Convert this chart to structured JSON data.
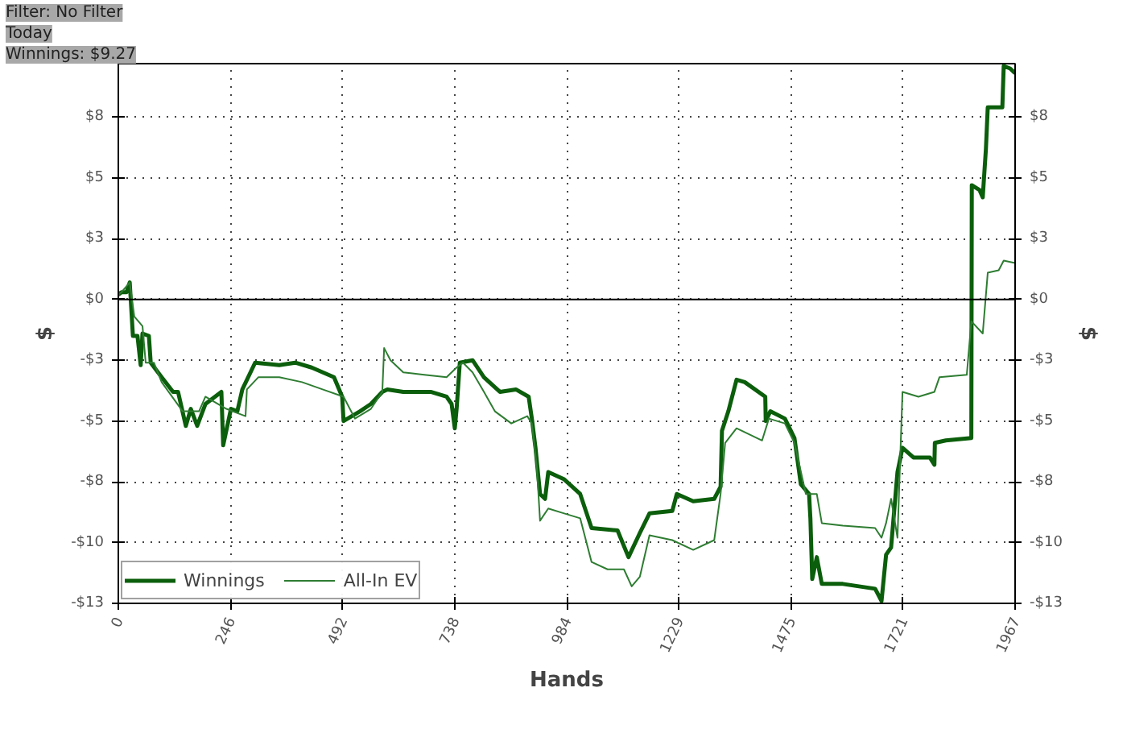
{
  "chart_data": {
    "type": "line",
    "xlabel": "Hands",
    "ylabel": "$",
    "y2label": "$",
    "annotations": [
      "Filter: No Filter",
      "Today",
      "Winnings: $9.27"
    ],
    "xlim": [
      0,
      1967
    ],
    "xticks": [
      0,
      {
        "value": 245.875,
        "label": "246"
      },
      {
        "value": 491.75,
        "label": "492"
      },
      {
        "value": 737.625,
        "label": "738"
      },
      {
        "value": 983.5,
        "label": "984"
      },
      {
        "value": 1229.375,
        "label": "1229"
      },
      {
        "value": 1475.25,
        "label": "1475"
      },
      {
        "value": 1721.125,
        "label": "1721"
      },
      1967
    ],
    "ylim": [
      -12.5,
      9.7
    ],
    "yticks": [
      {
        "value": -12.5,
        "label": "-$13"
      },
      {
        "value": -10,
        "label": "-$10"
      },
      {
        "value": -7.5,
        "label": "-$8"
      },
      {
        "value": -5,
        "label": "-$5"
      },
      {
        "value": -2.5,
        "label": "-$3"
      },
      {
        "value": 0,
        "label": "$0"
      },
      {
        "value": 2.5,
        "label": "$3"
      },
      {
        "value": 5,
        "label": "$5"
      },
      {
        "value": 7.5,
        "label": "$8"
      }
    ],
    "y2lim": [
      -12.5,
      9.7
    ],
    "y2ticks": [
      {
        "value": -12.5,
        "label": "-$13"
      },
      {
        "value": -10,
        "label": "-$10"
      },
      {
        "value": -7.5,
        "label": "-$8"
      },
      {
        "value": -5,
        "label": "-$5"
      },
      {
        "value": -2.5,
        "label": "-$3"
      },
      {
        "value": 0,
        "label": "$0"
      },
      {
        "value": 2.5,
        "label": "$3"
      },
      {
        "value": 5,
        "label": "$5"
      },
      {
        "value": 7.5,
        "label": "$8"
      }
    ],
    "ref_lines": [
      {
        "axis": "y",
        "value": 0,
        "color": "#000000"
      }
    ],
    "grid": true,
    "legend": "bottom left",
    "marker": "none",
    "line_style": "solid",
    "series": [
      {
        "name": "Winnings",
        "color": "#0b5e0b",
        "x": [
          0,
          7,
          18,
          25,
          32,
          42,
          49,
          53,
          67,
          71,
          95,
          120,
          131,
          148,
          159,
          173,
          191,
          226,
          230,
          247,
          261,
          272,
          300,
          353,
          388,
          424,
          473,
          491,
          494,
          530,
          554,
          579,
          590,
          625,
          685,
          720,
          731,
          738,
          742,
          749,
          777,
          802,
          837,
          872,
          900,
          907,
          915,
          925,
          936,
          943,
          978,
          1013,
          1038,
          1095,
          1119,
          1144,
          1165,
          1215,
          1225,
          1261,
          1307,
          1321,
          1324,
          1338,
          1356,
          1374,
          1419,
          1420,
          1430,
          1462,
          1483,
          1497,
          1515,
          1518,
          1522,
          1532,
          1543,
          1589,
          1660,
          1674,
          1684,
          1695,
          1709,
          1720,
          1744,
          1780,
          1790,
          1791,
          1815,
          1871,
          1872,
          1889,
          1896,
          1903,
          1907,
          1939,
          1942,
          1956,
          1967
        ],
        "values": [
          0.2,
          0.3,
          0.3,
          0.7,
          -1.5,
          -1.5,
          -2.7,
          -1.4,
          -1.5,
          -2.6,
          -3.2,
          -3.8,
          -3.8,
          -5.2,
          -4.5,
          -5.2,
          -4.3,
          -3.8,
          -6.0,
          -4.5,
          -4.6,
          -3.7,
          -2.6,
          -2.7,
          -2.6,
          -2.8,
          -3.2,
          -4.0,
          -5.0,
          -4.6,
          -4.3,
          -3.8,
          -3.7,
          -3.8,
          -3.8,
          -4.0,
          -4.3,
          -5.3,
          -4.5,
          -2.6,
          -2.5,
          -3.2,
          -3.8,
          -3.7,
          -4.0,
          -4.9,
          -6.1,
          -8.0,
          -8.2,
          -7.1,
          -7.4,
          -8.0,
          -9.4,
          -9.5,
          -10.6,
          -9.6,
          -8.8,
          -8.7,
          -8.0,
          -8.3,
          -8.2,
          -7.7,
          -5.4,
          -4.6,
          -3.3,
          -3.4,
          -4.0,
          -5.0,
          -4.6,
          -4.9,
          -5.7,
          -7.6,
          -8.0,
          -9.0,
          -11.5,
          -10.6,
          -11.7,
          -11.7,
          -11.9,
          -12.4,
          -10.5,
          -10.2,
          -7.1,
          -6.1,
          -6.5,
          -6.5,
          -6.8,
          -5.9,
          -5.8,
          -5.7,
          4.7,
          4.5,
          4.2,
          6.2,
          7.9,
          7.9,
          9.6,
          9.5,
          9.3
        ]
      },
      {
        "name": "All-In EV",
        "color": "#2e7d32",
        "x": [
          0,
          7,
          25,
          35,
          53,
          60,
          78,
          95,
          141,
          177,
          191,
          237,
          279,
          282,
          307,
          353,
          403,
          448,
          494,
          519,
          554,
          579,
          583,
          597,
          625,
          671,
          720,
          742,
          756,
          777,
          802,
          826,
          862,
          897,
          907,
          918,
          925,
          943,
          978,
          1013,
          1038,
          1073,
          1109,
          1126,
          1144,
          1165,
          1215,
          1261,
          1307,
          1321,
          1331,
          1356,
          1412,
          1427,
          1462,
          1483,
          1508,
          1532,
          1543,
          1589,
          1660,
          1674,
          1684,
          1695,
          1709,
          1720,
          1755,
          1790,
          1801,
          1861,
          1871,
          1896,
          1907,
          1931,
          1942,
          1967
        ],
        "values": [
          0.2,
          0.3,
          0.7,
          -0.7,
          -1.1,
          -2.6,
          -2.6,
          -3.4,
          -4.6,
          -4.6,
          -4.0,
          -4.5,
          -4.8,
          -3.7,
          -3.2,
          -3.2,
          -3.4,
          -3.7,
          -4.0,
          -4.9,
          -4.5,
          -3.8,
          -2.0,
          -2.5,
          -3.0,
          -3.1,
          -3.2,
          -2.8,
          -2.6,
          -3.0,
          -3.8,
          -4.6,
          -5.1,
          -4.8,
          -5.1,
          -6.9,
          -9.1,
          -8.6,
          -8.8,
          -9.0,
          -10.8,
          -11.1,
          -11.1,
          -11.8,
          -11.4,
          -9.7,
          -9.9,
          -10.3,
          -9.9,
          -8.0,
          -5.9,
          -5.3,
          -5.8,
          -4.9,
          -5.1,
          -5.9,
          -8.0,
          -8.0,
          -9.2,
          -9.3,
          -9.4,
          -9.8,
          -9.2,
          -8.2,
          -9.8,
          -3.8,
          -4.0,
          -3.8,
          -3.2,
          -3.1,
          -0.9,
          -1.4,
          1.1,
          1.2,
          1.6,
          1.5
        ]
      }
    ]
  }
}
